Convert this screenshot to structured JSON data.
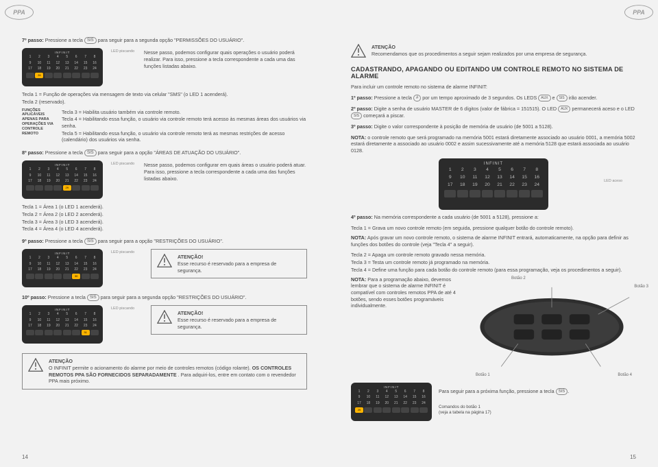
{
  "brand": "INFINIT",
  "colors": {
    "page_bg": "#f2f2f2",
    "text": "#4a4a4a",
    "keypad_bg": "#2b2b2b",
    "keypad_digit": "#bbbbbb",
    "keypad_on": "#ffb400",
    "border": "#888888",
    "logo": "#888888"
  },
  "left": {
    "page_number": "14",
    "step7": {
      "label": "7º passo:",
      "pre": "Pressione a tecla",
      "key": "SIS",
      "post": "para seguir para a segunda opção \"PERMISSÕES DO USUÁRIO\".",
      "led_label": "LED piscando",
      "paragraph": "Nesse passo, podemos configurar quais operações o usuário poderá realizar. Para isso, pressione a tecla correspondente a cada uma das funções listadas abaixo.",
      "keypad_on": [
        "26"
      ]
    },
    "tecla_list_a": [
      "Tecla 1 = Função de operações via mensagem de texto via celular \"SMS\" (o LED 1 acenderá).",
      "Tecla 2 (reservado)."
    ],
    "funcbox": {
      "side": "FUNÇÕES APLICÁVEIS APENAS PARA OPERAÇÕES VIA CONTROLE REMOTO",
      "lines": [
        "Tecla 3 = Habilita usuário também via controle remoto.",
        "Tecla 4 = Habilitando essa função, o usuário via controle remoto terá acesso às mesmas áreas dos usuários via senha.",
        "Tecla 5 = Habilitando essa função, o usuário via controle remoto terá as mesmas restrições de acesso (calendário) dos usuários via senha."
      ]
    },
    "step8": {
      "label": "8º passo:",
      "pre": "Pressione a tecla",
      "key": "SIS",
      "post": "para seguir para a opção \"ÁREAS DE ATUAÇÃO DO USUÁRIO\".",
      "led_label": "LED piscando",
      "paragraph": "Nesse passo, podemos configurar em quais áreas o usuário poderá atuar. Para isso, pressione a tecla correspondente a cada uma das funções listadas abaixo.",
      "keypad_on": [
        "29"
      ]
    },
    "tecla_list_b": [
      "Tecla 1 = Área 1 (o LED 1 acenderá).",
      "Tecla 2 = Área 2 (o LED 2 acenderá).",
      "Tecla 3 = Área 3 (o LED 3 acenderá).",
      "Tecla 4 = Área 4 (o LED 4 acenderá)."
    ],
    "step9": {
      "label": "9º passo:",
      "pre": "Pressione a tecla",
      "key": "SIS",
      "post": "para seguir para a opção \"RESTRIÇÕES DO USUÁRIO\".",
      "led_label": "LED piscando",
      "atencao_title": "ATENÇÃO!",
      "atencao_body": "Esse recurso é reservado para a empresa de segurança.",
      "keypad_on": [
        "30"
      ]
    },
    "step10": {
      "label": "10º passo:",
      "pre": "Pressione a tecla",
      "key": "SIS",
      "post": "para seguir para a segunda opção \"RESTRIÇÕES DO USUÁRIO\".",
      "led_label": "LED piscando",
      "atencao_title": "ATENÇÃO!",
      "atencao_body": "Esse recurso é reservado para a empresa de segurança.",
      "keypad_on": [
        "31"
      ]
    },
    "atencao_bottom": {
      "title": "ATENÇÃO",
      "body_a": "O INFINIT permite o acionamento do alarme por meio de controles remotos (código rolante). ",
      "body_b": "OS CONTROLES REMOTOS PPA SÃO FORNECIDOS SEPARADAMENTE",
      "body_c": ". Para adquiri-los, entre em contato com o revendedor PPA mais próximo."
    }
  },
  "right": {
    "page_number": "15",
    "atencao_top": {
      "title": "ATENÇÃO",
      "body": "Recomendamos que os procedimentos a seguir sejam realizados por uma empresa de segurança."
    },
    "section_title": "CADASTRANDO, APAGANDO OU EDITANDO UM CONTROLE REMOTO NO SISTEMA DE ALARME",
    "intro": "Para incluir um controle remoto no sistema de alarme INFINIT:",
    "step1": {
      "label": "1º passo:",
      "pre": "Pressione a tecla",
      "key": "#",
      "mid": "por um tempo aproximado de 3 segundos. Os LEDS",
      "led1": "AUX",
      "and": "e",
      "led2": "SIS",
      "post": "irão acender."
    },
    "step2": {
      "label": "2º passo:",
      "body_a": "Digite a senha de usuário MASTER de 6 dígitos (valor de fábrica = 151515). O LED",
      "led": "AUX",
      "body_b": "permanecerá aceso e o LED",
      "led2": "SIS",
      "body_c": "começará a piscar."
    },
    "step3": {
      "label": "3º passo:",
      "body": "Digite o valor correspondente à posição de memória de usuário (de 5001 a 5128)."
    },
    "nota1": {
      "label": "NOTA:",
      "body": "o controle remoto que será programado na memória 5001 estará diretamente associado ao usuário 0001, a memória 5002 estará diretamente a associado ao usuário 0002 e assim sucessivamente até a memória 5128 que estará associada ao usuário 0128."
    },
    "kp_large": {
      "led_label": "LED aceso",
      "on": []
    },
    "step4": {
      "label": "4º passo:",
      "body": "Na memória correspondente a cada usuário (de 5001 a 5128), pressione a:"
    },
    "tecla_list_c": [
      "Tecla 1 = Grava um novo controle remoto (em seguida, pressione qualquer botão do controle remoto)."
    ],
    "nota2": {
      "label": "NOTA:",
      "body": "Após gravar um novo controle remoto, o sistema de alarme INFINIT entrará, automaticamente, na opção para definir as funções dos botões do controle (veja \"Tecla 4\" a seguir)."
    },
    "tecla_list_d": [
      "Tecla 2 = Apaga um controle remoto gravado nessa memória.",
      "Tecla 3 = Testa um controle remoto já programado na memória.",
      "Tecla 4 = Define uma função para cada botão do controle remoto (para essa programação, veja os procedimentos a seguir)."
    ],
    "nota3": {
      "label": "NOTA:",
      "body": "Para a programação abaixo, devemos lembrar que o sistema de alarme INFINIT é compatível com controles remotos PPA de até 4 botões, sendo esses botões programáveis individualmente."
    },
    "remote_labels": {
      "b1": "Botão 1",
      "b2": "Botão 2",
      "b3": "Botão 3",
      "b4": "Botão 4"
    },
    "bottom_kp": {
      "on": [
        "25"
      ],
      "side_label": "Comandos do botão 1\n(veja a tabela na página 17)",
      "next_line_a": "Para seguir para a próxima função, pressione a tecla",
      "next_key": "SIS",
      "next_line_b": "."
    }
  }
}
